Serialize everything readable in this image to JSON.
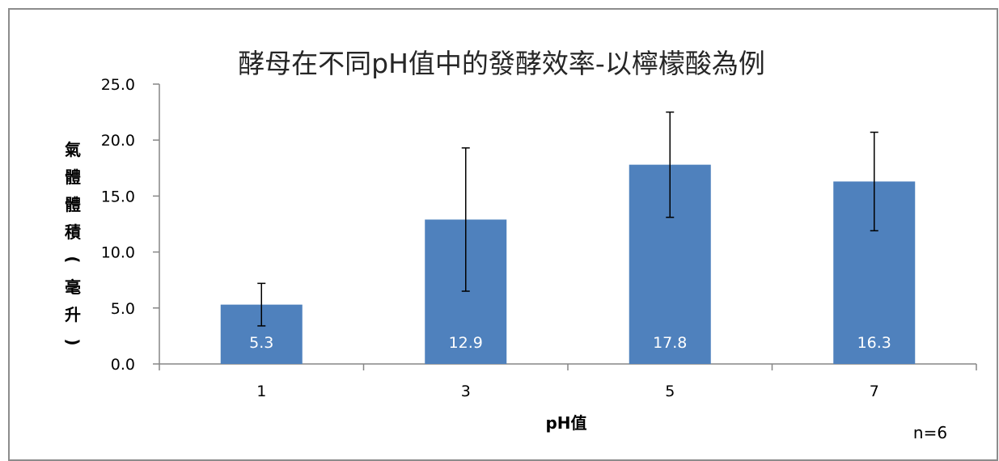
{
  "chart_data": {
    "type": "bar",
    "title": "酵母在不同pH值中的發酵效率-以檸檬酸為例",
    "xlabel": "pH值",
    "ylabel": "氣體體積(毫升)",
    "categories": [
      "1",
      "3",
      "5",
      "7"
    ],
    "values": [
      5.3,
      12.9,
      17.8,
      16.3
    ],
    "data_labels": [
      "5.3",
      "12.9",
      "17.8",
      "16.3"
    ],
    "error": [
      1.9,
      6.4,
      4.7,
      4.4
    ],
    "ylim": [
      0,
      25
    ],
    "yticks": [
      0,
      5,
      10,
      15,
      20,
      25
    ],
    "ytick_labels": [
      "0.0",
      "5.0",
      "10.0",
      "15.0",
      "20.0",
      "25.0"
    ],
    "grid": false,
    "legend": "none",
    "bar_color": "#4f81bd",
    "note": "n=6"
  }
}
